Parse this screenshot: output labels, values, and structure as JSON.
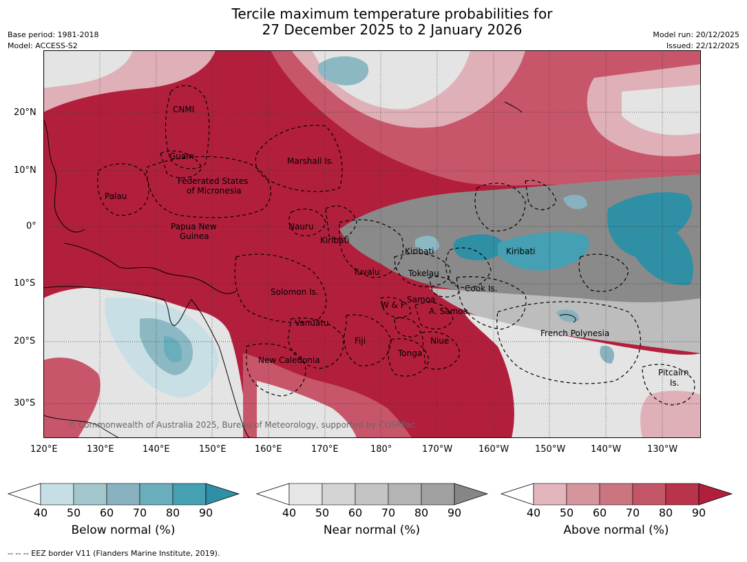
{
  "title": {
    "line1": "Tercile maximum temperature probabilities for",
    "line2": "27 December 2025 to 2 January 2026"
  },
  "meta": {
    "base_period": "Base period: 1981-2018",
    "model": "Model: ACCESS-S2",
    "model_run": "Model run: 20/12/2025",
    "issued": "Issued: 22/12/2025"
  },
  "axes": {
    "lon_ticks": [
      "120°E",
      "130°E",
      "140°E",
      "150°E",
      "160°E",
      "170°E",
      "180°",
      "170°W",
      "160°W",
      "150°W",
      "140°W",
      "130°W"
    ],
    "lat_ticks": [
      "20°N",
      "10°N",
      "0°",
      "10°S",
      "20°S",
      "30°S"
    ]
  },
  "regions": [
    "CNMI",
    "Guam",
    "Marshall Is.",
    "Federated States",
    "of Micronesia",
    "Palau",
    "Papua New",
    "Guinea",
    "Nauru",
    "Kiribati",
    "Kiribati",
    "Kiribati",
    "Tuvalu",
    "Tokelau",
    "Solomon Is.",
    "Cook Is.",
    "Samoa",
    "W & F",
    "A. Samoa",
    "Vanuatu",
    "Fiji",
    "Niue",
    "Tonga",
    "French Polynesia",
    "New Caledonia",
    "Pitcairn",
    "Is."
  ],
  "copyright": "© Commonwealth of Australia 2025, Bureau of Meteorology, supported by COSPPac",
  "colorbars": [
    {
      "title": "Below normal (%)",
      "ticks": [
        "40",
        "50",
        "60",
        "70",
        "80",
        "90"
      ],
      "colors": [
        "#c6dfe5",
        "#a4c6cd",
        "#88b2bf",
        "#6aaebd",
        "#44a0b2",
        "#2e8fa5"
      ]
    },
    {
      "title": "Near normal (%)",
      "ticks": [
        "40",
        "50",
        "60",
        "70",
        "80",
        "90"
      ],
      "colors": [
        "#e6e6e6",
        "#d4d4d4",
        "#c4c4c4",
        "#b4b4b4",
        "#a0a0a0",
        "#868686"
      ]
    },
    {
      "title": "Above normal (%)",
      "ticks": [
        "40",
        "50",
        "60",
        "70",
        "80",
        "90"
      ],
      "colors": [
        "#e2b6bc",
        "#d5959d",
        "#cb7580",
        "#c25566",
        "#b9334a",
        "#b21f3c"
      ]
    }
  ],
  "footnote": "-- -- -- EEZ border V11 (Flanders Marine Institute, 2019).",
  "colors": {
    "above_strong": "#b21f3c",
    "above_mid": "#c8566a",
    "above_light": "#e0b0b8",
    "near_light": "#e4e4e4",
    "near_mid": "#bdbdbd",
    "near_strong": "#8a8a8a",
    "below_light": "#c8dfe6",
    "below_mid": "#8cb8c4",
    "below_strong": "#2e8fa5"
  }
}
